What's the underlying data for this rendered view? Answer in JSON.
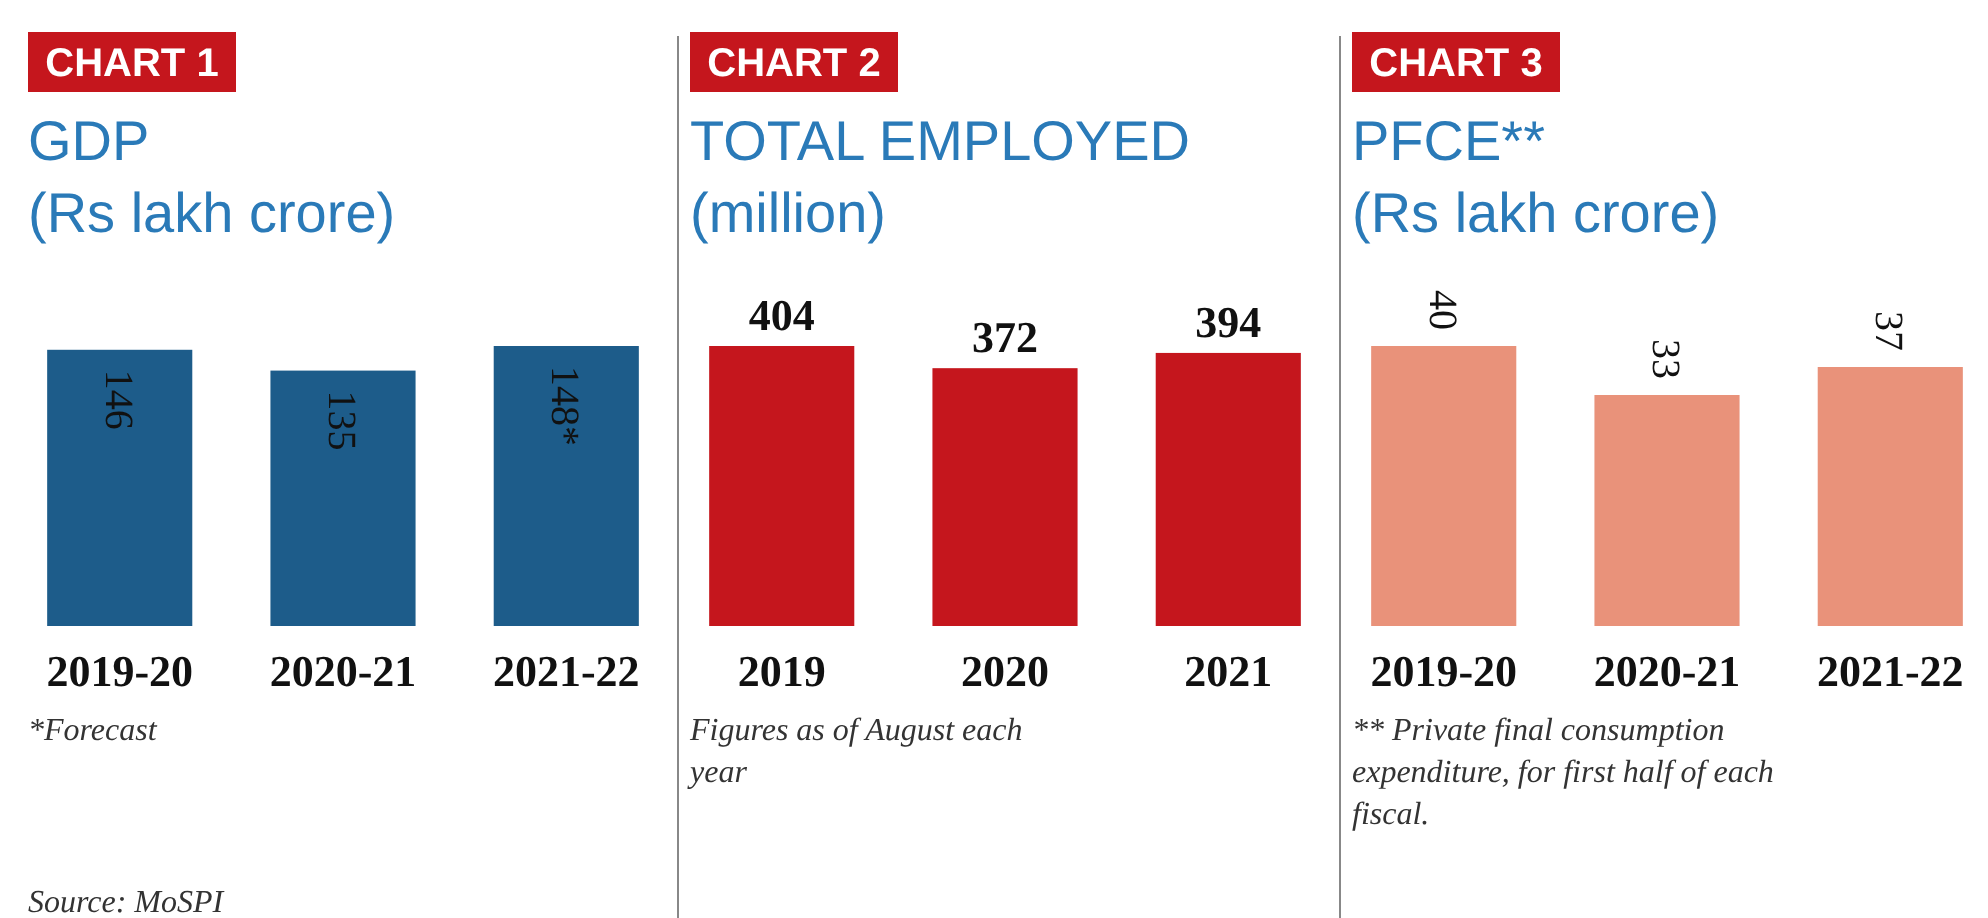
{
  "chart_data": [
    {
      "type": "bar",
      "title": "CHART 1",
      "subtitle": "GDP\n(Rs lakh crore)",
      "categories": [
        "2019-20",
        "2020-21",
        "2021-22"
      ],
      "values": [
        146,
        135,
        148
      ],
      "value_labels": [
        "146",
        "135",
        "148*"
      ],
      "color": "#1d5c8a",
      "annotations": [
        "*Forecast",
        "Source: MoSPI"
      ]
    },
    {
      "type": "bar",
      "title": "CHART 2",
      "subtitle": "TOTAL EMPLOYED\n(million)",
      "categories": [
        "2019",
        "2020",
        "2021"
      ],
      "values": [
        404,
        372,
        394
      ],
      "data_labels": true,
      "color": "#c5161d",
      "annotations": [
        "Figures as of August each\nyear"
      ]
    },
    {
      "type": "bar",
      "title": "CHART 3",
      "subtitle": "PFCE**\n(Rs lakh crore)",
      "categories": [
        "2019-20",
        "2020-21",
        "2021-22"
      ],
      "values": [
        40,
        33,
        37
      ],
      "data_labels": true,
      "color": "#e9927a",
      "annotations": [
        "** Private final consumption\nexpenditure, for first half of each\nfiscal."
      ]
    }
  ]
}
